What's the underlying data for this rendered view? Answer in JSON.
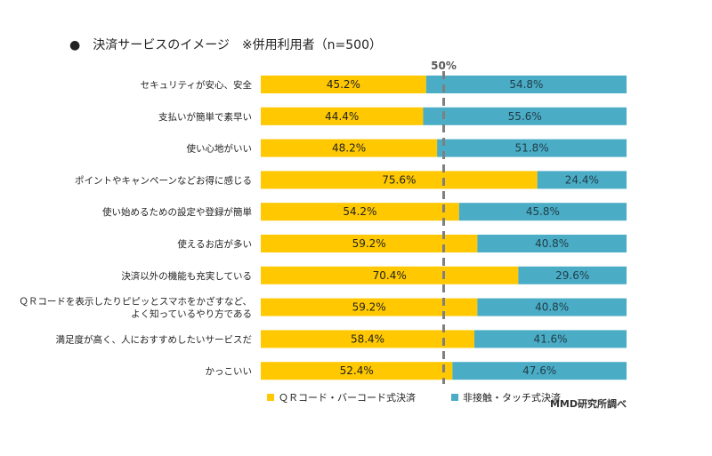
{
  "title": "●　決済サービスのイメージ　※併用利用者（n=500）",
  "source_note": "MMD研究所調べ",
  "chart_data": {
    "type": "bar",
    "orientation": "horizontal",
    "stacked": true,
    "title": "●　決済サービスのイメージ　※併用利用者（n=500）",
    "xlim": [
      0,
      100
    ],
    "reference_line": {
      "value": 50,
      "label": "50%"
    },
    "legend_position": "bottom",
    "categories": [
      "セキュリティが安心、安全",
      "支払いが簡単で素早い",
      "使い心地がいい",
      "ポイントやキャンペーンなどお得に感じる",
      "使い始めるための設定や登録が簡単",
      "使えるお店が多い",
      "決済以外の機能も充実している",
      [
        "ＱＲコードを表示したりピピッとスマホをかざすなど、",
        "よく知っているやり方である"
      ],
      "満足度が高く、人におすすめしたいサービスだ",
      "かっこいい"
    ],
    "series": [
      {
        "name": "ＱＲコード・バーコード式決済",
        "color": "#FFC800",
        "values": [
          45.2,
          44.4,
          48.2,
          75.6,
          54.2,
          59.2,
          70.4,
          59.2,
          58.4,
          52.4
        ]
      },
      {
        "name": "非接触・タッチ式決済",
        "color": "#4BACC6",
        "values": [
          54.8,
          55.6,
          51.8,
          24.4,
          45.8,
          40.8,
          29.6,
          40.8,
          41.6,
          47.6
        ]
      }
    ],
    "value_labels": [
      [
        "45.2%",
        "44.4%",
        "48.2%",
        "75.6%",
        "54.2%",
        "59.2%",
        "70.4%",
        "59.2%",
        "58.4%",
        "52.4%"
      ],
      [
        "54.8%",
        "55.6%",
        "51.8%",
        "24.4%",
        "45.8%",
        "40.8%",
        "29.6%",
        "40.8%",
        "41.6%",
        "47.6%"
      ]
    ]
  }
}
